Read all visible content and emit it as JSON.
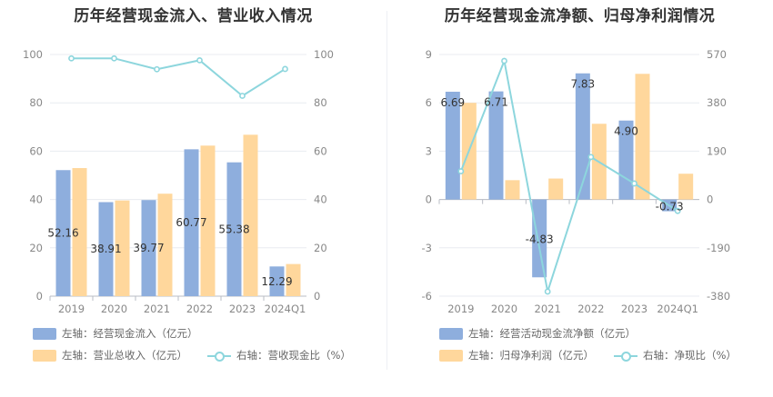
{
  "colors": {
    "blue": "#8eaedd",
    "orange": "#ffd79c",
    "line": "#8dd6dd",
    "grid": "#e8ebf0"
  },
  "chart_data": [
    {
      "type": "bar",
      "title": "历年经营现金流入、营业收入情况",
      "categories": [
        "2019",
        "2020",
        "2021",
        "2022",
        "2023",
        "2024Q1"
      ],
      "left_axis": {
        "min": 0,
        "max": 100,
        "ticks": [
          "0",
          "20",
          "40",
          "60",
          "80",
          "100"
        ]
      },
      "right_axis": {
        "min": 0,
        "max": 100,
        "ticks": [
          "0",
          "20",
          "40",
          "60",
          "80",
          "100"
        ]
      },
      "series": [
        {
          "name": "左轴：经营现金流入（亿元）",
          "kind": "bar",
          "axis": "left",
          "color": "#8eaedd",
          "values": [
            52.16,
            38.91,
            39.77,
            60.77,
            55.38,
            12.29
          ],
          "labels": [
            "52.16",
            "38.91",
            "39.77",
            "60.77",
            "55.38",
            "12.29"
          ]
        },
        {
          "name": "左轴：营业总收入（亿元）",
          "kind": "bar",
          "axis": "left",
          "color": "#ffd79c",
          "values": [
            53.0,
            39.6,
            42.4,
            62.3,
            66.8,
            13.3
          ]
        },
        {
          "name": "右轴：营收现金比（%）",
          "kind": "line",
          "axis": "right",
          "color": "#8dd6dd",
          "values": [
            98.4,
            98.4,
            93.9,
            97.6,
            82.9,
            94.0
          ]
        }
      ],
      "legend": [
        "左轴：经营现金流入（亿元）",
        "左轴：营业总收入（亿元）",
        "右轴：营收现金比（%）"
      ]
    },
    {
      "type": "bar",
      "title": "历年经营现金流净额、归母净利润情况",
      "categories": [
        "2019",
        "2020",
        "2021",
        "2022",
        "2023",
        "2024Q1"
      ],
      "left_axis": {
        "min": -6,
        "max": 9,
        "ticks": [
          "-6",
          "-3",
          "0",
          "3",
          "6",
          "9"
        ]
      },
      "right_axis": {
        "min": -380,
        "max": 570,
        "ticks": [
          "-380",
          "-190",
          "0",
          "190",
          "380",
          "570"
        ]
      },
      "series": [
        {
          "name": "左轴：经营活动现金流净额（亿元）",
          "kind": "bar",
          "axis": "left",
          "color": "#8eaedd",
          "values": [
            6.69,
            6.71,
            -4.83,
            7.83,
            4.9,
            -0.73
          ],
          "labels": [
            "6.69",
            "6.71",
            "-4.83",
            "7.83",
            "4.90",
            "-0.73"
          ]
        },
        {
          "name": "左轴：归母净利润（亿元）",
          "kind": "bar",
          "axis": "left",
          "color": "#ffd79c",
          "values": [
            6.0,
            1.2,
            1.3,
            4.7,
            7.8,
            1.6
          ]
        },
        {
          "name": "右轴：净现比（%）",
          "kind": "line",
          "axis": "right",
          "color": "#8dd6dd",
          "values": [
            111,
            545,
            -362,
            167,
            63,
            -45
          ]
        }
      ],
      "legend": [
        "左轴：经营活动现金流净额（亿元）",
        "左轴：归母净利润（亿元）",
        "右轴：净现比（%）"
      ]
    }
  ]
}
